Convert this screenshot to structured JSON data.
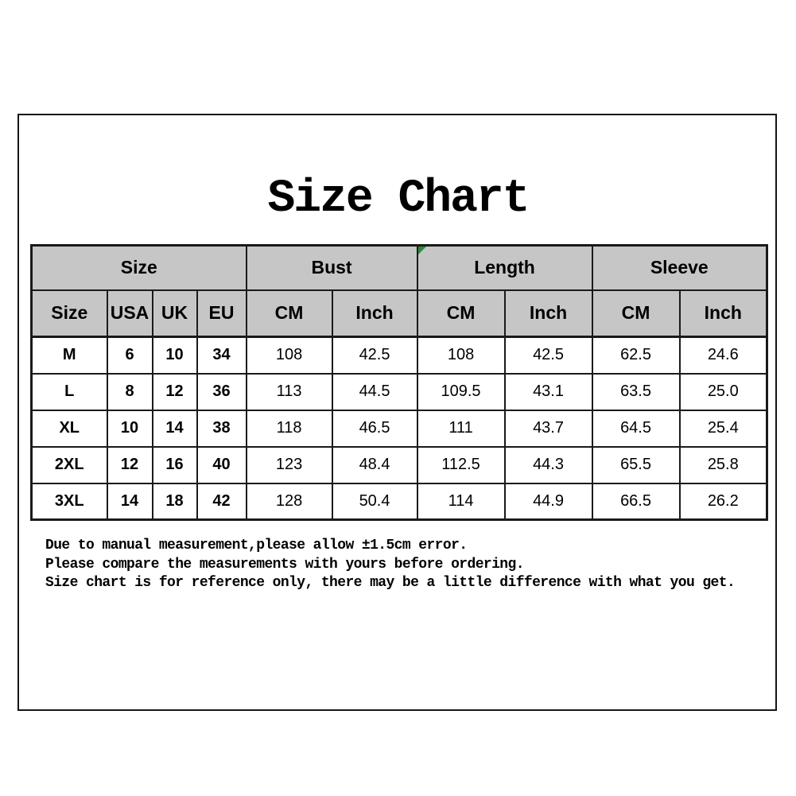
{
  "page": {
    "title": "Size Chart"
  },
  "table": {
    "groups": [
      {
        "label": "Size"
      },
      {
        "label": "Bust"
      },
      {
        "label": "Length"
      },
      {
        "label": "Sleeve"
      }
    ],
    "columns": [
      "Size",
      "USA",
      "UK",
      "EU",
      "CM",
      "Inch",
      "CM",
      "Inch",
      "CM",
      "Inch"
    ],
    "rows": [
      [
        "M",
        "6",
        "10",
        "34",
        "108",
        "42.5",
        "108",
        "42.5",
        "62.5",
        "24.6"
      ],
      [
        "L",
        "8",
        "12",
        "36",
        "113",
        "44.5",
        "109.5",
        "43.1",
        "63.5",
        "25.0"
      ],
      [
        "XL",
        "10",
        "14",
        "38",
        "118",
        "46.5",
        "111",
        "43.7",
        "64.5",
        "25.4"
      ],
      [
        "2XL",
        "12",
        "16",
        "40",
        "123",
        "48.4",
        "112.5",
        "44.3",
        "65.5",
        "25.8"
      ],
      [
        "3XL",
        "14",
        "18",
        "42",
        "128",
        "50.4",
        "114",
        "44.9",
        "66.5",
        "26.2"
      ]
    ]
  },
  "notes": [
    "Due to manual measurement,please allow ±1.5cm error.",
    "Please compare the measurements with yours before ordering.",
    "Size chart is for reference only, there may be a little difference with what you get."
  ],
  "colors": {
    "header_bg": "#c6c6c6",
    "border": "#1a1a1a",
    "marker_green": "#2c8a3e"
  }
}
